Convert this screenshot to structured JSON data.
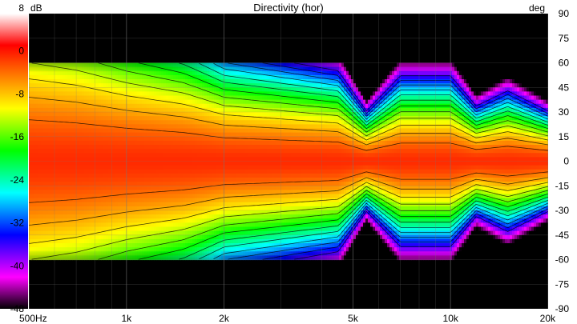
{
  "chart_data": {
    "type": "heatmap",
    "title": "Directivity (hor)",
    "colorbar": {
      "unit": "dB",
      "range": [
        -48,
        8
      ],
      "ticks": [
        "8",
        "0",
        "-8",
        "-16",
        "-24",
        "-32",
        "-40",
        "-48"
      ],
      "stops": [
        {
          "db": 8,
          "color": "#ffffff"
        },
        {
          "db": 2,
          "color": "#ff0000"
        },
        {
          "db": -10,
          "color": "#ffff00"
        },
        {
          "db": -18,
          "color": "#00ff00"
        },
        {
          "db": -26,
          "color": "#00ffff"
        },
        {
          "db": -34,
          "color": "#0000ff"
        },
        {
          "db": -42,
          "color": "#ff00ff"
        },
        {
          "db": -48,
          "color": "#000000"
        }
      ]
    },
    "x_axis": {
      "scale": "log",
      "range_hz": [
        500,
        20000
      ],
      "ticks": [
        {
          "hz": 500,
          "label": "500Hz"
        },
        {
          "hz": 1000,
          "label": "1k"
        },
        {
          "hz": 2000,
          "label": "2k"
        },
        {
          "hz": 5000,
          "label": "5k"
        },
        {
          "hz": 10000,
          "label": "10k"
        },
        {
          "hz": 20000,
          "label": "20k"
        }
      ],
      "minor_hz": [
        600,
        700,
        800,
        900,
        3000,
        4000,
        6000,
        7000,
        8000,
        9000
      ]
    },
    "y_axis": {
      "unit": "deg",
      "range": [
        -90,
        90
      ],
      "ticks": [
        "90",
        "75",
        "60",
        "45",
        "30",
        "15",
        "0",
        "-15",
        "-30",
        "-45",
        "-60",
        "-75",
        "-90"
      ],
      "measured_range": [
        -60,
        60
      ]
    },
    "contour_step_db": 3,
    "beamwidth_6db_deg": [
      {
        "hz": 500,
        "deg": 39
      },
      {
        "hz": 700,
        "deg": 36
      },
      {
        "hz": 1000,
        "deg": 31
      },
      {
        "hz": 1500,
        "deg": 27
      },
      {
        "hz": 2000,
        "deg": 22
      },
      {
        "hz": 3000,
        "deg": 20
      },
      {
        "hz": 4500,
        "deg": 18
      },
      {
        "hz": 5500,
        "deg": 10
      },
      {
        "hz": 7000,
        "deg": 17
      },
      {
        "hz": 10000,
        "deg": 17
      },
      {
        "hz": 12000,
        "deg": 11
      },
      {
        "hz": 15000,
        "deg": 14
      },
      {
        "hz": 20000,
        "deg": 10
      }
    ]
  }
}
